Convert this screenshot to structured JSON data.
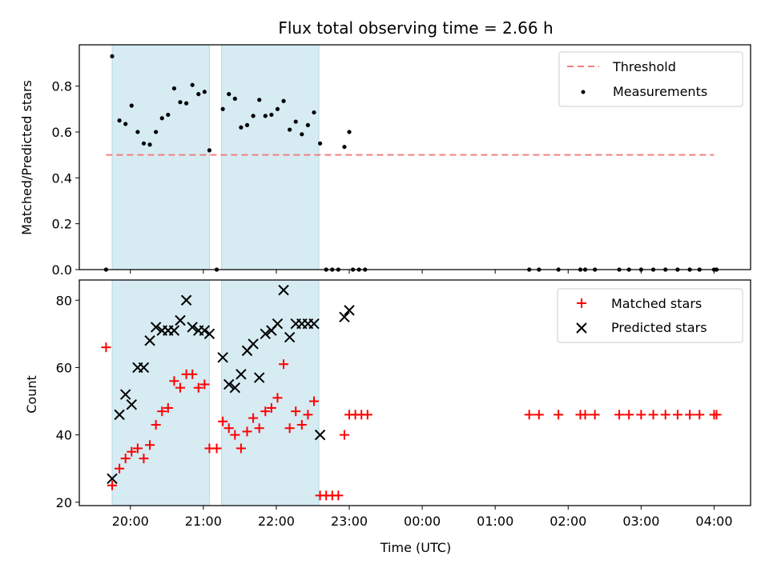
{
  "chart_data": {
    "title": "Flux total observing time = 2.66 h",
    "xlabel": "Time (UTC)",
    "x_unit": "hours",
    "x_tick_values": [
      20,
      21,
      22,
      23,
      24,
      25,
      26,
      27,
      28
    ],
    "x_tick_labels": [
      "20:00",
      "21:00",
      "22:00",
      "23:00",
      "00:00",
      "01:00",
      "02:00",
      "03:00",
      "04:00"
    ],
    "xlim": [
      "19:18",
      "04:30"
    ],
    "shaded_spans": [
      {
        "start": "19:45",
        "end": "21:05"
      },
      {
        "start": "21:15",
        "end": "22:35"
      }
    ],
    "panels": [
      {
        "type": "scatter",
        "ylabel": "Matched/Predicted stars",
        "ylim": [
          0,
          0.98
        ],
        "yticks": [
          0.0,
          0.2,
          0.4,
          0.6,
          0.8
        ],
        "ytick_labels": [
          "0.0",
          "0.2",
          "0.4",
          "0.6",
          "0.8"
        ],
        "legend_position": "top-right",
        "threshold": {
          "name": "Threshold",
          "value": 0.5,
          "start": "19:40",
          "end": "04:00",
          "color": "#f08080"
        },
        "series": [
          {
            "name": "Measurements",
            "marker": "dot",
            "color": "#000000",
            "points": [
              [
                "19:40",
                0.0
              ],
              [
                "19:45",
                0.93
              ],
              [
                "19:51",
                0.65
              ],
              [
                "19:56",
                0.635
              ],
              [
                "20:01",
                0.715
              ],
              [
                "20:06",
                0.6
              ],
              [
                "20:11",
                0.55
              ],
              [
                "20:16",
                0.545
              ],
              [
                "20:21",
                0.6
              ],
              [
                "20:26",
                0.66
              ],
              [
                "20:31",
                0.675
              ],
              [
                "20:36",
                0.79
              ],
              [
                "20:41",
                0.73
              ],
              [
                "20:46",
                0.725
              ],
              [
                "20:51",
                0.805
              ],
              [
                "20:56",
                0.765
              ],
              [
                "21:01",
                0.775
              ],
              [
                "21:05",
                0.52
              ],
              [
                "21:11",
                0.0
              ],
              [
                "21:16",
                0.7
              ],
              [
                "21:21",
                0.765
              ],
              [
                "21:26",
                0.745
              ],
              [
                "21:31",
                0.62
              ],
              [
                "21:36",
                0.63
              ],
              [
                "21:41",
                0.67
              ],
              [
                "21:46",
                0.74
              ],
              [
                "21:51",
                0.67
              ],
              [
                "21:56",
                0.675
              ],
              [
                "22:01",
                0.7
              ],
              [
                "22:06",
                0.735
              ],
              [
                "22:11",
                0.61
              ],
              [
                "22:16",
                0.645
              ],
              [
                "22:21",
                0.59
              ],
              [
                "22:26",
                0.63
              ],
              [
                "22:31",
                0.685
              ],
              [
                "22:36",
                0.55
              ],
              [
                "22:41",
                0.0
              ],
              [
                "22:46",
                0.0
              ],
              [
                "22:51",
                0.0
              ],
              [
                "22:56",
                0.535
              ],
              [
                "23:00",
                0.6
              ],
              [
                "23:03",
                0.0
              ],
              [
                "23:08",
                0.0
              ],
              [
                "23:13",
                0.0
              ],
              [
                "01:28",
                0.0
              ],
              [
                "01:36",
                0.0
              ],
              [
                "01:52",
                0.0
              ],
              [
                "02:10",
                0.0
              ],
              [
                "02:14",
                0.0
              ],
              [
                "02:22",
                0.0
              ],
              [
                "02:42",
                0.0
              ],
              [
                "02:50",
                0.0
              ],
              [
                "03:00",
                0.0
              ],
              [
                "03:10",
                0.0
              ],
              [
                "03:20",
                0.0
              ],
              [
                "03:30",
                0.0
              ],
              [
                "03:40",
                0.0
              ],
              [
                "03:48",
                0.0
              ],
              [
                "04:00",
                0.0
              ],
              [
                "04:02",
                0.0
              ]
            ]
          }
        ]
      },
      {
        "type": "scatter",
        "ylabel": "Count",
        "ylim": [
          19,
          86
        ],
        "yticks": [
          20,
          40,
          60,
          80
        ],
        "ytick_labels": [
          "20",
          "40",
          "60",
          "80"
        ],
        "legend_position": "top-right",
        "series": [
          {
            "name": "Matched stars",
            "marker": "plus",
            "color": "#ff0000",
            "points": [
              [
                "19:40",
                66
              ],
              [
                "19:45",
                25
              ],
              [
                "19:51",
                30
              ],
              [
                "19:56",
                33
              ],
              [
                "20:01",
                35
              ],
              [
                "20:06",
                36
              ],
              [
                "20:11",
                33
              ],
              [
                "20:16",
                37
              ],
              [
                "20:21",
                43
              ],
              [
                "20:26",
                47
              ],
              [
                "20:31",
                48
              ],
              [
                "20:36",
                56
              ],
              [
                "20:41",
                54
              ],
              [
                "20:46",
                58
              ],
              [
                "20:51",
                58
              ],
              [
                "20:56",
                54
              ],
              [
                "21:01",
                55
              ],
              [
                "21:05",
                36
              ],
              [
                "21:11",
                36
              ],
              [
                "21:16",
                44
              ],
              [
                "21:21",
                42
              ],
              [
                "21:26",
                40
              ],
              [
                "21:31",
                36
              ],
              [
                "21:36",
                41
              ],
              [
                "21:41",
                45
              ],
              [
                "21:46",
                42
              ],
              [
                "21:51",
                47
              ],
              [
                "21:56",
                48
              ],
              [
                "22:01",
                51
              ],
              [
                "22:06",
                61
              ],
              [
                "22:11",
                42
              ],
              [
                "22:16",
                47
              ],
              [
                "22:21",
                43
              ],
              [
                "22:26",
                46
              ],
              [
                "22:31",
                50
              ],
              [
                "22:36",
                22
              ],
              [
                "22:41",
                22
              ],
              [
                "22:46",
                22
              ],
              [
                "22:51",
                22
              ],
              [
                "22:56",
                40
              ],
              [
                "23:00",
                46
              ],
              [
                "23:05",
                46
              ],
              [
                "23:10",
                46
              ],
              [
                "23:15",
                46
              ],
              [
                "01:28",
                46
              ],
              [
                "01:36",
                46
              ],
              [
                "01:52",
                46
              ],
              [
                "02:10",
                46
              ],
              [
                "02:14",
                46
              ],
              [
                "02:22",
                46
              ],
              [
                "02:42",
                46
              ],
              [
                "02:50",
                46
              ],
              [
                "03:00",
                46
              ],
              [
                "03:10",
                46
              ],
              [
                "03:20",
                46
              ],
              [
                "03:30",
                46
              ],
              [
                "03:40",
                46
              ],
              [
                "03:48",
                46
              ],
              [
                "04:00",
                46
              ],
              [
                "04:02",
                46
              ]
            ]
          },
          {
            "name": "Predicted stars",
            "marker": "x",
            "color": "#000000",
            "points": [
              [
                "19:45",
                27
              ],
              [
                "19:51",
                46
              ],
              [
                "19:56",
                52
              ],
              [
                "20:01",
                49
              ],
              [
                "20:06",
                60
              ],
              [
                "20:11",
                60
              ],
              [
                "20:16",
                68
              ],
              [
                "20:21",
                72
              ],
              [
                "20:26",
                71
              ],
              [
                "20:31",
                71
              ],
              [
                "20:36",
                71
              ],
              [
                "20:41",
                74
              ],
              [
                "20:46",
                80
              ],
              [
                "20:51",
                72
              ],
              [
                "20:56",
                71
              ],
              [
                "21:01",
                71
              ],
              [
                "21:05",
                70
              ],
              [
                "21:16",
                63
              ],
              [
                "21:21",
                55
              ],
              [
                "21:26",
                54
              ],
              [
                "21:31",
                58
              ],
              [
                "21:36",
                65
              ],
              [
                "21:41",
                67
              ],
              [
                "21:46",
                57
              ],
              [
                "21:51",
                70
              ],
              [
                "21:56",
                71
              ],
              [
                "22:01",
                73
              ],
              [
                "22:06",
                83
              ],
              [
                "22:11",
                69
              ],
              [
                "22:16",
                73
              ],
              [
                "22:21",
                73
              ],
              [
                "22:26",
                73
              ],
              [
                "22:31",
                73
              ],
              [
                "22:36",
                40
              ],
              [
                "22:56",
                75
              ],
              [
                "23:00",
                77
              ]
            ]
          }
        ]
      }
    ]
  }
}
